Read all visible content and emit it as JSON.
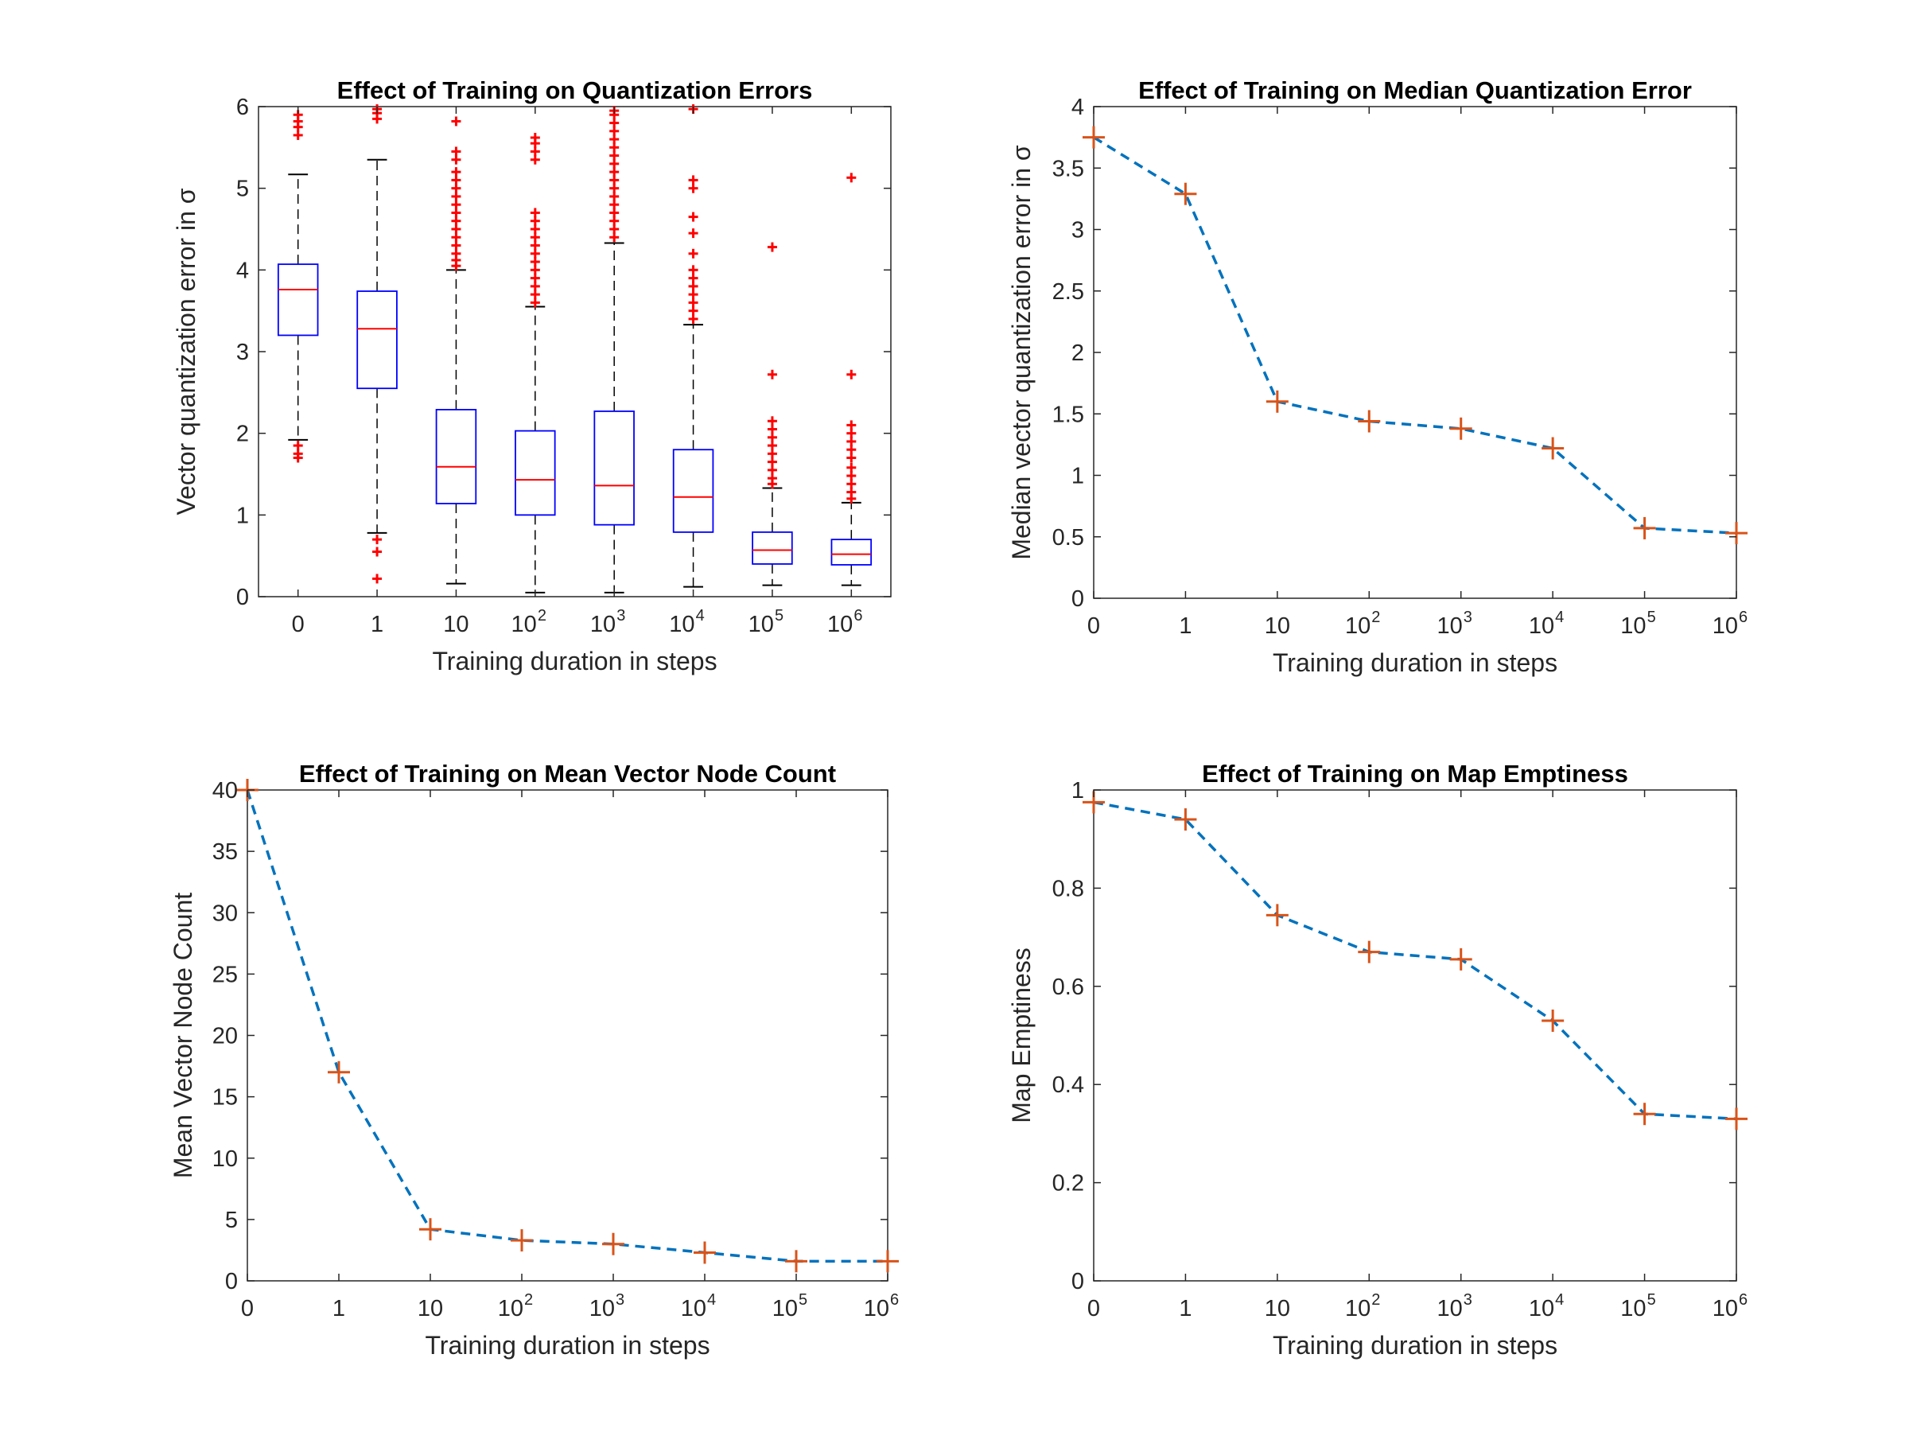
{
  "chart_data": [
    {
      "type": "box",
      "title": "Effect of Training on Quantization Errors",
      "xlabel": "Training duration in steps",
      "ylabel": "Vector quantization error in σ",
      "ylim": [
        0,
        6
      ],
      "yticks": [
        "0",
        "1",
        "2",
        "3",
        "4",
        "5",
        "6"
      ],
      "categories": [
        {
          "base": "0",
          "exp": ""
        },
        {
          "base": "1",
          "exp": ""
        },
        {
          "base": "10",
          "exp": ""
        },
        {
          "base": "10",
          "exp": "2"
        },
        {
          "base": "10",
          "exp": "3"
        },
        {
          "base": "10",
          "exp": "4"
        },
        {
          "base": "10",
          "exp": "5"
        },
        {
          "base": "10",
          "exp": "6"
        }
      ],
      "colors": {
        "box": "#0000ff",
        "median": "#ff0000",
        "whisker": "#000000",
        "outlier": "#ff0000"
      },
      "boxes": [
        {
          "q1": 3.2,
          "median": 3.76,
          "q3": 4.07,
          "whisker_low": 1.92,
          "whisker_high": 5.17,
          "outliers": [
            1.7,
            1.75,
            1.85,
            5.65,
            5.75,
            5.82,
            5.9
          ]
        },
        {
          "q1": 2.55,
          "median": 3.28,
          "q3": 3.74,
          "whisker_low": 0.78,
          "whisker_high": 5.35,
          "outliers": [
            0.22,
            0.55,
            0.7,
            5.85,
            5.92,
            5.97
          ]
        },
        {
          "q1": 1.14,
          "median": 1.59,
          "q3": 2.29,
          "whisker_low": 0.16,
          "whisker_high": 4.0,
          "outliers": [
            4.05,
            4.12,
            4.2,
            4.3,
            4.4,
            4.5,
            4.6,
            4.7,
            4.8,
            4.9,
            5.0,
            5.1,
            5.2,
            5.35,
            5.45,
            5.82
          ]
        },
        {
          "q1": 1.0,
          "median": 1.43,
          "q3": 2.03,
          "whisker_low": 0.05,
          "whisker_high": 3.55,
          "outliers": [
            3.6,
            3.7,
            3.8,
            3.9,
            4.0,
            4.1,
            4.2,
            4.3,
            4.4,
            4.5,
            4.6,
            4.7,
            5.35,
            5.45,
            5.55,
            5.62
          ]
        },
        {
          "q1": 0.88,
          "median": 1.36,
          "q3": 2.27,
          "whisker_low": 0.05,
          "whisker_high": 4.33,
          "outliers": [
            4.4,
            4.5,
            4.6,
            4.7,
            4.8,
            4.9,
            5.0,
            5.1,
            5.2,
            5.3,
            5.4,
            5.5,
            5.6,
            5.7,
            5.8,
            5.9,
            5.95
          ]
        },
        {
          "q1": 0.79,
          "median": 1.22,
          "q3": 1.8,
          "whisker_low": 0.12,
          "whisker_high": 3.33,
          "outliers": [
            3.4,
            3.5,
            3.6,
            3.7,
            3.8,
            3.9,
            4.0,
            4.2,
            4.45,
            4.65,
            5.0,
            5.1,
            5.97
          ]
        },
        {
          "q1": 0.4,
          "median": 0.57,
          "q3": 0.79,
          "whisker_low": 0.14,
          "whisker_high": 1.33,
          "outliers": [
            1.38,
            1.45,
            1.55,
            1.65,
            1.75,
            1.85,
            1.95,
            2.05,
            2.15,
            2.72,
            4.28
          ]
        },
        {
          "q1": 0.39,
          "median": 0.52,
          "q3": 0.7,
          "whisker_low": 0.14,
          "whisker_high": 1.15,
          "outliers": [
            1.2,
            1.28,
            1.38,
            1.48,
            1.58,
            1.7,
            1.8,
            1.9,
            2.0,
            2.1,
            2.72,
            5.13
          ]
        }
      ]
    },
    {
      "type": "line",
      "title": "Effect of Training on Median Quantization Error",
      "xlabel": "Training duration in steps",
      "ylabel": "Median vector quantization error in σ",
      "ylim": [
        0,
        4
      ],
      "yticks": [
        "0",
        "0.5",
        "1",
        "1.5",
        "2",
        "2.5",
        "3",
        "3.5",
        "4"
      ],
      "categories": [
        {
          "base": "0",
          "exp": ""
        },
        {
          "base": "1",
          "exp": ""
        },
        {
          "base": "10",
          "exp": ""
        },
        {
          "base": "10",
          "exp": "2"
        },
        {
          "base": "10",
          "exp": "3"
        },
        {
          "base": "10",
          "exp": "4"
        },
        {
          "base": "10",
          "exp": "5"
        },
        {
          "base": "10",
          "exp": "6"
        }
      ],
      "values": [
        3.75,
        3.29,
        1.6,
        1.44,
        1.38,
        1.22,
        0.57,
        0.53
      ],
      "line_style": "dashed",
      "marker": "+",
      "colors": {
        "line": "#0072bd",
        "marker": "#d95319"
      }
    },
    {
      "type": "line",
      "title": "Effect of Training on Mean Vector Node Count",
      "xlabel": "Training duration in steps",
      "ylabel": "Mean Vector Node Count",
      "ylim": [
        0,
        40
      ],
      "yticks": [
        "0",
        "5",
        "10",
        "15",
        "20",
        "25",
        "30",
        "35",
        "40"
      ],
      "categories": [
        {
          "base": "0",
          "exp": ""
        },
        {
          "base": "1",
          "exp": ""
        },
        {
          "base": "10",
          "exp": ""
        },
        {
          "base": "10",
          "exp": "2"
        },
        {
          "base": "10",
          "exp": "3"
        },
        {
          "base": "10",
          "exp": "4"
        },
        {
          "base": "10",
          "exp": "5"
        },
        {
          "base": "10",
          "exp": "6"
        }
      ],
      "values": [
        40,
        17,
        4.2,
        3.3,
        3.0,
        2.3,
        1.6,
        1.6
      ],
      "line_style": "dashed",
      "marker": "+",
      "colors": {
        "line": "#0072bd",
        "marker": "#d95319"
      }
    },
    {
      "type": "line",
      "title": "Effect of Training on Map Emptiness",
      "xlabel": "Training duration in steps",
      "ylabel": "Map Emptiness",
      "ylim": [
        0,
        1
      ],
      "yticks": [
        "0",
        "0.2",
        "0.4",
        "0.6",
        "0.8",
        "1"
      ],
      "categories": [
        {
          "base": "0",
          "exp": ""
        },
        {
          "base": "1",
          "exp": ""
        },
        {
          "base": "10",
          "exp": ""
        },
        {
          "base": "10",
          "exp": "2"
        },
        {
          "base": "10",
          "exp": "3"
        },
        {
          "base": "10",
          "exp": "4"
        },
        {
          "base": "10",
          "exp": "5"
        },
        {
          "base": "10",
          "exp": "6"
        }
      ],
      "values": [
        0.975,
        0.94,
        0.745,
        0.67,
        0.655,
        0.53,
        0.34,
        0.33
      ],
      "line_style": "dashed",
      "marker": "+",
      "colors": {
        "line": "#0072bd",
        "marker": "#d95319"
      }
    }
  ]
}
